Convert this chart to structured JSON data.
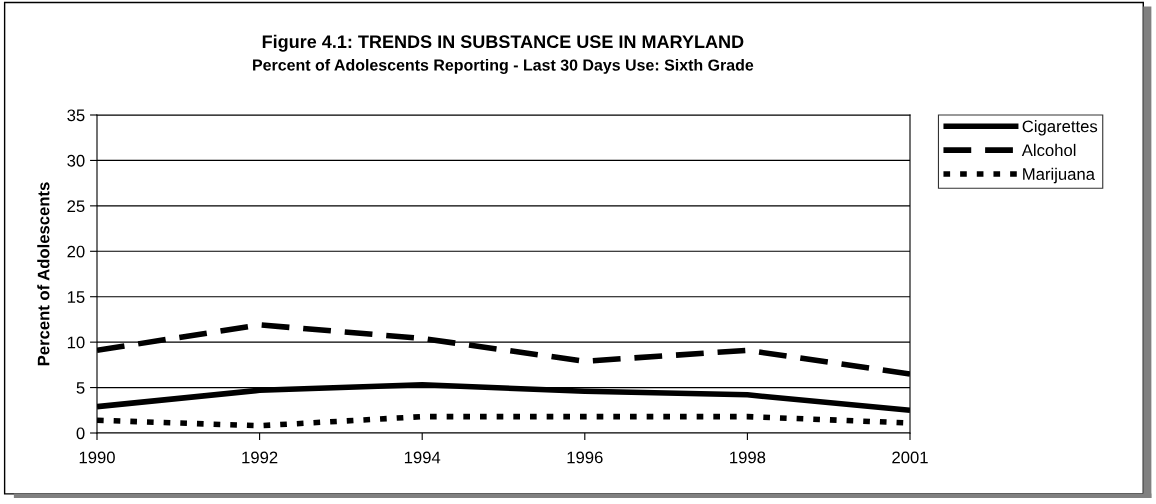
{
  "chart_data": {
    "type": "line",
    "title": "Figure 4.1: TRENDS IN SUBSTANCE USE IN MARYLAND",
    "subtitle": "Percent of Adolescents Reporting - Last 30 Days Use: Sixth Grade",
    "ylabel": "Percent of Adolescents",
    "categories": [
      "1990",
      "1992",
      "1994",
      "1996",
      "1998",
      "2001"
    ],
    "series": [
      {
        "name": "Cigarettes",
        "color": "#000000",
        "line_style": "solid",
        "values": [
          2.9,
          4.7,
          5.3,
          4.6,
          4.2,
          2.5
        ]
      },
      {
        "name": "Alcohol",
        "color": "#000000",
        "line_style": "dashed",
        "values": [
          9.1,
          11.9,
          10.4,
          7.9,
          9.1,
          6.5
        ]
      },
      {
        "name": "Marijuana",
        "color": "#000000",
        "line_style": "dotted",
        "values": [
          1.4,
          0.8,
          1.8,
          1.8,
          1.8,
          1.1
        ]
      }
    ],
    "ylim": [
      0,
      35
    ],
    "yticks": [
      0,
      5,
      10,
      15,
      20,
      25,
      30,
      35
    ],
    "grid": "y",
    "legend": "top right",
    "marker": "none"
  }
}
